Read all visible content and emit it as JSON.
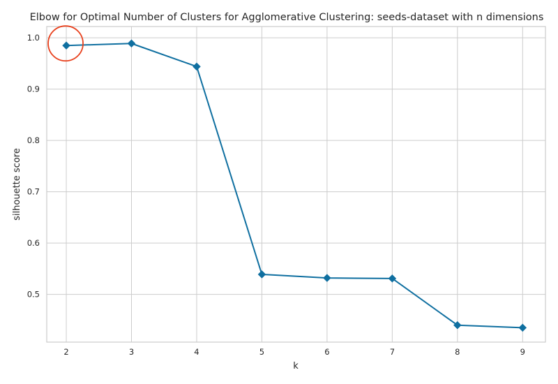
{
  "chart_data": {
    "type": "line",
    "title": "Elbow for Optimal Number of Clusters for Agglomerative Clustering: seeds-dataset with n dimensions",
    "xlabel": "k",
    "ylabel": "silhouette score",
    "x": [
      2,
      3,
      4,
      5,
      6,
      7,
      8,
      9
    ],
    "series": [
      {
        "values": [
          0.985,
          0.989,
          0.944,
          0.539,
          0.532,
          0.531,
          0.44,
          0.435
        ]
      }
    ],
    "x_ticks": [
      "2",
      "3",
      "4",
      "5",
      "6",
      "7",
      "8",
      "9"
    ],
    "y_ticks": [
      "0.5",
      "0.6",
      "0.7",
      "0.8",
      "0.9",
      "1.0"
    ],
    "xlim": [
      1.7,
      9.35
    ],
    "ylim": [
      0.407,
      1.022
    ],
    "grid": true,
    "highlight": {
      "x": 2,
      "y": 0.985,
      "shape": "circle",
      "color": "#e8401c"
    },
    "colors": {
      "line": "#0f6fa0",
      "marker": "#0f6fa0",
      "grid": "#cccccc"
    }
  }
}
